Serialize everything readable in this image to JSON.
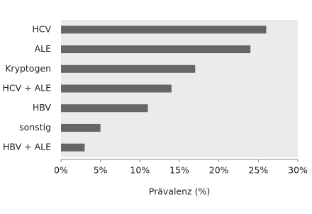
{
  "chart_data": {
    "type": "bar",
    "orientation": "horizontal",
    "x_label": "Prävalenz (%)",
    "categories": [
      "HCV",
      "ALE",
      "Kryptogen",
      "HCV + ALE",
      "HBV",
      "sonstig",
      "HBV + ALE"
    ],
    "values": [
      26,
      24,
      17,
      14,
      11,
      5,
      3
    ],
    "color": "#666666",
    "xlim": [
      0,
      30
    ],
    "xticks": [
      {
        "value": 0,
        "label": "0%"
      },
      {
        "value": 5,
        "label": "5%"
      },
      {
        "value": 10,
        "label": "10%"
      },
      {
        "value": 15,
        "label": "15%"
      },
      {
        "value": 20,
        "label": "20%"
      },
      {
        "value": 25,
        "label": "25%"
      },
      {
        "value": 30,
        "label": "30%"
      }
    ],
    "grid": false
  }
}
